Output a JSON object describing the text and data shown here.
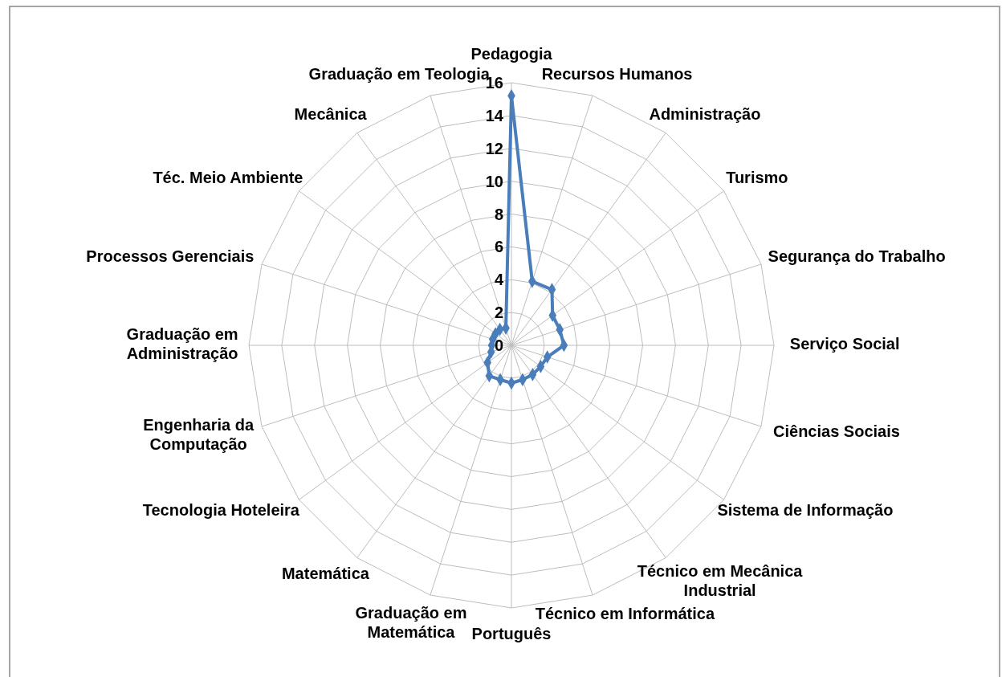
{
  "chart_data": {
    "type": "radar",
    "categories": [
      "Pedagogia",
      "Recursos Humanos",
      "Administração",
      "Turismo",
      "Segurança do Trabalho",
      "Serviço Social",
      "Ciências Sociais",
      "Sistema de Informação",
      "Técnico em Mecânica Industrial",
      "Técnico em Informática",
      "Português",
      "Graduação em Matemática",
      "Matemática",
      "Tecnologia Hoteleira",
      "Engenharia da Computação",
      "Graduação em Administração",
      "Processos Gerenciais",
      "Téc. Meio Ambiente",
      "Mecânica",
      "Graduação em Teologia"
    ],
    "series": [
      {
        "color": "#4a7ebb",
        "values": [
          15.2,
          4.1,
          4.2,
          3.1,
          3.1,
          3.2,
          2.3,
          2.2,
          2.2,
          2.2,
          2.3,
          2.2,
          2.3,
          1.8,
          1.3,
          1.2,
          1.2,
          1.2,
          1.2,
          1.1
        ]
      }
    ],
    "ylim": [
      0,
      16
    ],
    "yticks": [
      0,
      2,
      4,
      6,
      8,
      10,
      12,
      14,
      16
    ],
    "marker": "diamond",
    "grid": true
  }
}
